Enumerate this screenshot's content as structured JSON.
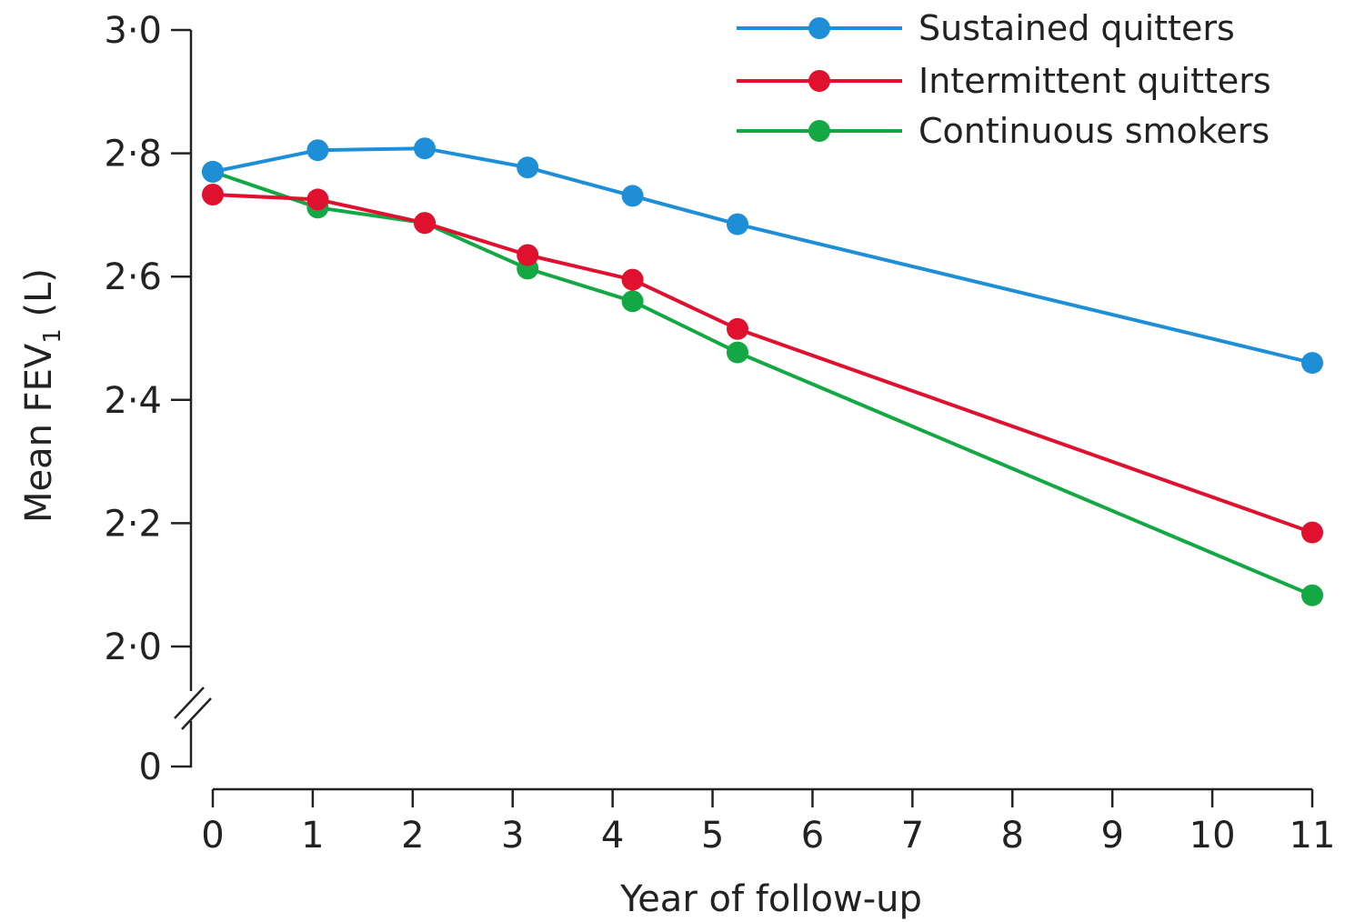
{
  "chart_data": {
    "type": "line",
    "xlabel": "Year of follow-up",
    "ylabel": "Mean FEV",
    "ylabel_subscript": "1",
    "ylabel_unit": " (L)",
    "x_ticks": [
      "0",
      "1",
      "2",
      "3",
      "4",
      "5",
      "6",
      "7",
      "8",
      "9",
      "10",
      "11"
    ],
    "y_ticks": [
      {
        "value": 3.0,
        "label": "3·0"
      },
      {
        "value": 2.8,
        "label": "2·8"
      },
      {
        "value": 2.6,
        "label": "2·6"
      },
      {
        "value": 2.4,
        "label": "2·4"
      },
      {
        "value": 2.2,
        "label": "2·2"
      },
      {
        "value": 2.0,
        "label": "2·0"
      }
    ],
    "y_zero_label": "0",
    "y_axis_break": true,
    "xlim": [
      0,
      11
    ],
    "ylim": [
      2.0,
      3.0
    ],
    "legend_position": "top-right",
    "grid": false,
    "series": [
      {
        "name": "Sustained quitters",
        "color": "#1e8fd6",
        "points": [
          {
            "x": 0,
            "y": 2.77
          },
          {
            "x": 1.05,
            "y": 2.805
          },
          {
            "x": 2.12,
            "y": 2.808
          },
          {
            "x": 3.15,
            "y": 2.777
          },
          {
            "x": 4.2,
            "y": 2.731
          },
          {
            "x": 5.25,
            "y": 2.685
          },
          {
            "x": 11,
            "y": 2.46
          }
        ]
      },
      {
        "name": "Intermittent quitters",
        "color": "#e0102f",
        "points": [
          {
            "x": 0,
            "y": 2.733
          },
          {
            "x": 1.05,
            "y": 2.725
          },
          {
            "x": 2.12,
            "y": 2.687
          },
          {
            "x": 3.15,
            "y": 2.635
          },
          {
            "x": 4.2,
            "y": 2.595
          },
          {
            "x": 5.25,
            "y": 2.515
          },
          {
            "x": 11,
            "y": 2.185
          }
        ]
      },
      {
        "name": "Continuous smokers",
        "color": "#13a844",
        "points": [
          {
            "x": 0,
            "y": 2.77
          },
          {
            "x": 1.05,
            "y": 2.712
          },
          {
            "x": 2.12,
            "y": 2.687
          },
          {
            "x": 3.15,
            "y": 2.613
          },
          {
            "x": 4.2,
            "y": 2.56
          },
          {
            "x": 5.25,
            "y": 2.477
          },
          {
            "x": 11,
            "y": 2.083
          }
        ]
      }
    ]
  }
}
